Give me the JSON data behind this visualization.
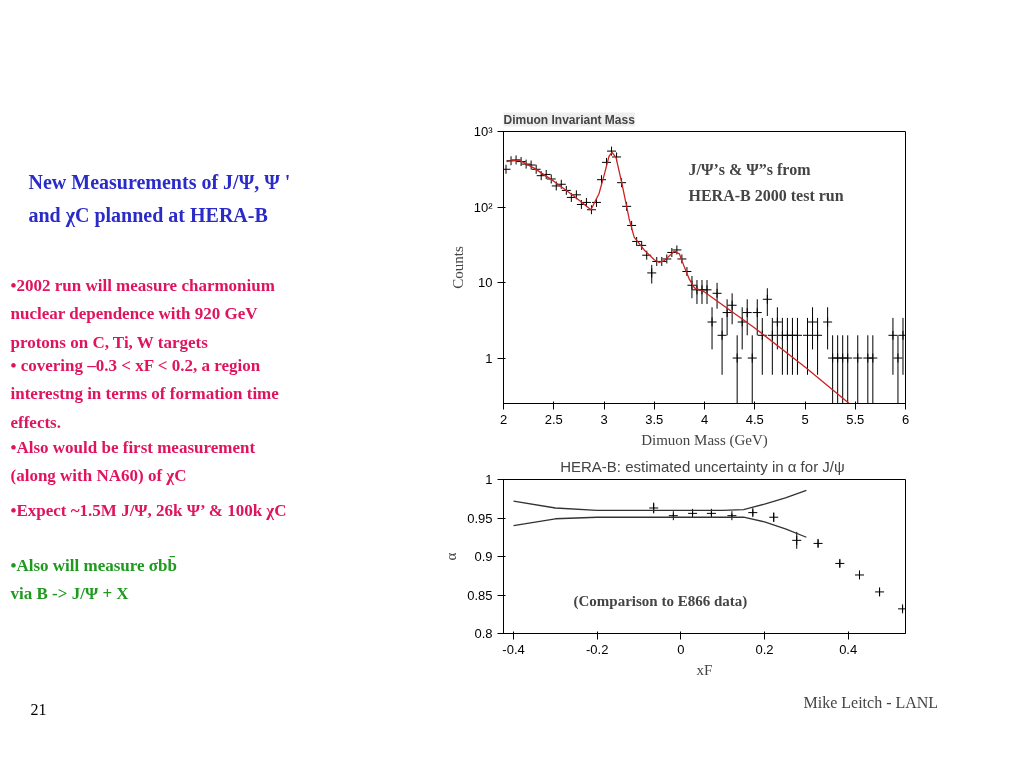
{
  "chart_data": [
    {
      "type": "other",
      "title": "New Measurements of J/Ψ, Ψ '\nand χC planned at HERA-B",
      "annotations": [
        "•2002 run will measure charmonium\nnuclear dependence with 920 GeV\nprotons on C, Ti, W targets",
        "• covering –0.3 < xF < 0.2, a region\ninterestng in terms of formation time\neffects.",
        "•Also would be first measurement\n(along with NA60) of χC",
        "•Expect ~1.5M J/Ψ, 26k Ψ’ & 100k χC",
        "•Also will measure σbb̄\n  via B -> J/Ψ + X",
        "21",
        "Mike Leitch - LANL"
      ]
    },
    {
      "type": "scatter",
      "title": "Dimuon Invariant Mass",
      "xlabel": "Dimuon Mass (GeV)",
      "ylabel": "Counts",
      "annotations": [
        "J/Ψ’s & Ψ”s from\nHERA-B 2000 test run"
      ],
      "log": "y",
      "xlim": [
        2,
        6
      ],
      "ylim": [
        0.25,
        1000
      ],
      "xticks": [
        2,
        2.5,
        3,
        3.5,
        4,
        4.5,
        5,
        5.5,
        6
      ],
      "yticks": [
        1,
        10,
        {
          "value": 100,
          "label": "10²"
        },
        {
          "value": 1000,
          "label": "10³"
        }
      ],
      "grid": false,
      "marker": "cross",
      "series": [
        {
          "type": "scatter",
          "color": "#000000",
          "x": [
            2.025,
            2.075,
            2.125,
            2.175,
            2.225,
            2.275,
            2.325,
            2.375,
            2.425,
            2.475,
            2.525,
            2.575,
            2.625,
            2.675,
            2.725,
            2.775,
            2.825,
            2.875,
            2.925,
            2.975,
            3.025,
            3.075,
            3.125,
            3.175,
            3.225,
            3.275,
            3.325,
            3.375,
            3.425,
            3.475,
            3.525,
            3.575,
            3.625,
            3.675,
            3.725,
            3.775,
            3.825,
            3.875,
            3.925,
            3.975,
            4.025,
            4.075,
            4.125,
            4.175,
            4.225,
            4.275,
            4.325,
            4.375,
            4.425,
            4.475,
            4.525,
            4.575,
            4.625,
            4.675,
            4.725,
            4.775,
            4.825,
            4.875,
            4.925,
            5.025,
            5.075,
            5.125,
            5.225,
            5.275,
            5.325,
            5.375,
            5.425,
            5.525,
            5.625,
            5.675,
            5.875,
            5.925,
            5.975
          ],
          "values": [
            316,
            410,
            420,
            400,
            370,
            360,
            316,
            260,
            270,
            235,
            190,
            200,
            166,
            134,
            145,
            108,
            115,
            92,
            115,
            230,
            390,
            550,
            460,
            210,
            102,
            57,
            35,
            31,
            23,
            13.4,
            19,
            19,
            20.5,
            25,
            27,
            20.5,
            14,
            9.2,
            8,
            8,
            8,
            3,
            7.2,
            2,
            4,
            5,
            1,
            3,
            4,
            1,
            4,
            2,
            6,
            2,
            3,
            2,
            2,
            2,
            2,
            2,
            3,
            2,
            3,
            1,
            1,
            1,
            1,
            1,
            1,
            1,
            2,
            1,
            2
          ],
          "errors": [
            null,
            null,
            null,
            null,
            null,
            null,
            null,
            null,
            null,
            null,
            null,
            null,
            null,
            null,
            null,
            null,
            null,
            null,
            null,
            null,
            null,
            null,
            null,
            null,
            null,
            null,
            null,
            null,
            null,
            [
              9.7,
              17.1
            ],
            null,
            null,
            null,
            null,
            null,
            null,
            null,
            [
              6.2,
              12.2
            ],
            [
              5.2,
              10.8
            ],
            [
              5.2,
              10.8
            ],
            [
              5.2,
              10.8
            ],
            [
              1.3,
              4.7
            ],
            [
              4.5,
              9.9
            ],
            [
              0.6,
              3.4
            ],
            [
              2,
              6
            ],
            [
              2.8,
              7.2
            ],
            [
              0.25,
              2
            ],
            [
              1.3,
              4.7
            ],
            [
              2,
              6
            ],
            [
              0.25,
              2
            ],
            [
              2,
              6
            ],
            [
              0.6,
              3.4
            ],
            [
              3.6,
              8.4
            ],
            [
              0.6,
              3.4
            ],
            [
              1.3,
              4.7
            ],
            [
              0.6,
              3.4
            ],
            [
              0.6,
              3.4
            ],
            [
              0.6,
              3.4
            ],
            [
              0.6,
              3.4
            ],
            [
              0.6,
              3.4
            ],
            [
              1.3,
              4.7
            ],
            [
              0.6,
              3.4
            ],
            [
              1.3,
              4.7
            ],
            [
              0.25,
              2
            ],
            [
              0.25,
              2
            ],
            [
              0.25,
              2
            ],
            [
              0.25,
              2
            ],
            [
              0.25,
              2
            ],
            [
              0.25,
              2
            ],
            [
              0.25,
              2
            ],
            [
              0.6,
              3.4
            ],
            [
              0.25,
              2
            ],
            [
              0.6,
              3.4
            ]
          ]
        },
        {
          "type": "line",
          "color": "#cc2222",
          "marker": "none",
          "x": [
            2.03,
            2.15,
            2.3,
            2.5,
            2.7,
            2.87,
            2.95,
            3.0,
            3.05,
            3.08,
            3.12,
            3.18,
            3.25,
            3.3,
            3.4,
            3.5,
            3.55,
            3.6,
            3.7,
            3.75,
            3.8,
            3.85,
            3.9,
            4.0,
            4.5,
            5.0,
            5.44
          ],
          "values": [
            400,
            420,
            330,
            220,
            140,
            92,
            150,
            260,
            470,
            530,
            450,
            200,
            70,
            40,
            27,
            20,
            18.5,
            19.5,
            26,
            24,
            16,
            11,
            8.5,
            7.5,
            2.5,
            0.76,
            0.25
          ]
        }
      ]
    },
    {
      "type": "scatter",
      "title": "HERA-B: estimated uncertainty in  α for J/ψ",
      "xlabel": "xF",
      "ylabel": "α",
      "annotations": [
        "(Comparison to E866 data)"
      ],
      "xlim": [
        -0.424,
        0.537
      ],
      "ylim": [
        0.8,
        1
      ],
      "xticks": [
        -0.4,
        -0.2,
        0,
        0.2,
        0.4
      ],
      "yticks": [
        0.8,
        0.85,
        0.9,
        0.95,
        1
      ],
      "grid": false,
      "marker": "cross",
      "series": [
        {
          "type": "scatter",
          "color": "#000000",
          "x": [
            -0.065,
            -0.018,
            0.028,
            0.073,
            0.122,
            0.172,
            0.222,
            0.277,
            0.328,
            0.38,
            0.427,
            0.475,
            0.53
          ],
          "values": [
            0.963,
            0.953,
            0.956,
            0.956,
            0.953,
            0.957,
            0.951,
            0.921,
            0.917,
            0.891,
            0.876,
            0.854,
            0.832
          ],
          "errors": [
            0.007,
            0.003,
            0.003,
            0.003,
            0.003,
            0.004,
            0.006,
            0.011,
            0.005,
            0.005,
            0.005,
            0.005,
            0.004
          ]
        },
        {
          "type": "line",
          "color": "#333333",
          "marker": "none",
          "x": [
            -0.4,
            -0.3,
            -0.2,
            0.1,
            0.15,
            0.2,
            0.25,
            0.3
          ],
          "values": [
            0.972,
            0.963,
            0.96,
            0.96,
            0.961,
            0.968,
            0.976,
            0.986
          ]
        },
        {
          "type": "line",
          "color": "#333333",
          "marker": "none",
          "x": [
            -0.4,
            -0.3,
            -0.2,
            0.15,
            0.2,
            0.25,
            0.3
          ],
          "values": [
            0.94,
            0.949,
            0.951,
            0.951,
            0.945,
            0.936,
            0.925
          ]
        }
      ]
    }
  ]
}
